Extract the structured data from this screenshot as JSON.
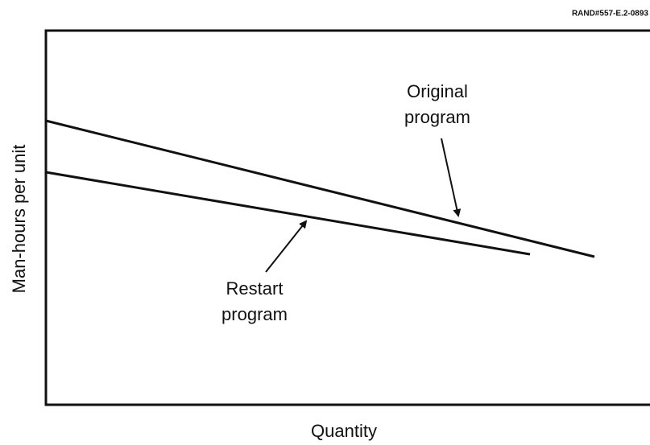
{
  "chart_data": {
    "type": "line",
    "figure_id": "RAND#557-E.2-0893",
    "xlabel": "Quantity",
    "ylabel": "Man-hours per unit",
    "annotations": [
      {
        "lines": [
          "Original",
          "program"
        ]
      },
      {
        "lines": [
          "Restart",
          "program"
        ]
      }
    ]
  }
}
